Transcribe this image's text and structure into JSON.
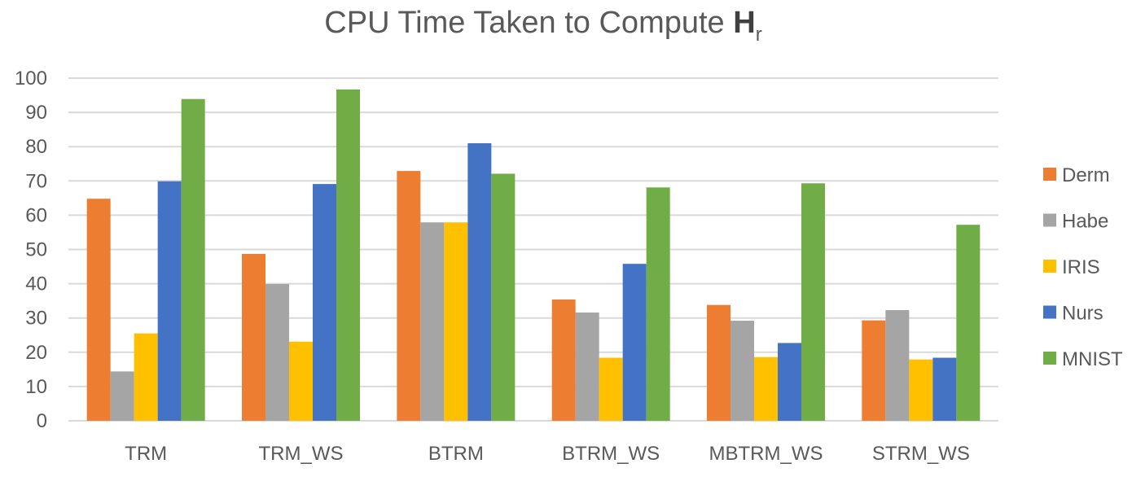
{
  "chart_data": {
    "type": "bar",
    "title": "CPU Time Taken to Compute ",
    "title_bold": "H",
    "title_subscript": "r",
    "categories": [
      "TRM",
      "TRM_WS",
      "BTRM",
      "BTRM_WS",
      "MBTRM_WS",
      "STRM_WS"
    ],
    "series": [
      {
        "name": "Derm",
        "color": "#ED7D31",
        "values": [
          64.8,
          48.7,
          72.9,
          35.4,
          33.8,
          29.3
        ]
      },
      {
        "name": "Habe",
        "color": "#A5A5A5",
        "values": [
          14.4,
          39.9,
          57.9,
          31.6,
          29.2,
          32.3
        ]
      },
      {
        "name": "IRIS",
        "color": "#FFC000",
        "values": [
          25.5,
          23.1,
          57.9,
          18.4,
          18.6,
          17.9
        ]
      },
      {
        "name": "Nurs",
        "color": "#4472C4",
        "values": [
          69.9,
          69.1,
          81.0,
          45.8,
          22.7,
          18.4
        ]
      },
      {
        "name": "MNIST",
        "color": "#70AD47",
        "values": [
          93.9,
          96.7,
          72.1,
          68.1,
          69.3,
          57.2
        ]
      }
    ],
    "ylim": [
      0,
      100
    ],
    "yticks": [
      "0",
      "10",
      "20",
      "30",
      "40",
      "50",
      "60",
      "70",
      "80",
      "90",
      "100"
    ],
    "grid": true,
    "legend_position": "right",
    "xlabel": "",
    "ylabel": ""
  }
}
